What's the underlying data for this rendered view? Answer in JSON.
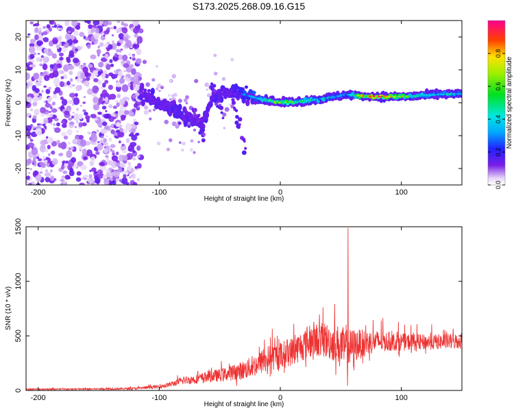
{
  "title": "S173.2025.268.09.16.G15",
  "colors": {
    "snr_line": "#ee3333",
    "axis": "#000000"
  },
  "chart_data": [
    {
      "type": "heatmap",
      "name": "spectrogram",
      "xlabel": "Height of straight line (km)",
      "ylabel": "Frequency (Hz)",
      "xlim": [
        -210,
        150
      ],
      "ylim": [
        -25,
        25
      ],
      "xticks": [
        -200,
        -100,
        0,
        100
      ],
      "yticks": [
        -20,
        -10,
        0,
        10,
        20
      ],
      "colorbar": {
        "label": "Normalized spectral amplitude",
        "range": [
          0,
          1
        ],
        "ticks": [
          "0.0",
          "0.2",
          "0.4",
          "0.6",
          "0.8"
        ],
        "tick_values": [
          0.0,
          0.2,
          0.4,
          0.6,
          0.8
        ]
      },
      "ridge": {
        "description": "dominant frequency track",
        "x": [
          -115,
          -105,
          -95,
          -85,
          -75,
          -65,
          -55,
          -45,
          -35,
          -25,
          -15,
          0,
          20,
          40,
          55,
          70,
          90,
          110,
          130,
          150
        ],
        "y": [
          3,
          1,
          -1,
          -3,
          -5,
          -6,
          2,
          3,
          3,
          2,
          1,
          0,
          0.5,
          1.5,
          2.5,
          2,
          1.8,
          2,
          2.5,
          2.7
        ],
        "amplitude": [
          0.2,
          0.15,
          0.2,
          0.2,
          0.2,
          0.15,
          0.25,
          0.2,
          0.25,
          0.4,
          0.5,
          0.8,
          0.5,
          0.45,
          0.35,
          0.9,
          0.95,
          0.55,
          0.45,
          0.45
        ]
      },
      "noise_region": {
        "x_range": [
          -210,
          -115
        ],
        "amplitude": 0.05
      }
    },
    {
      "type": "line",
      "name": "snr",
      "xlabel": "Height of straight line (km)",
      "ylabel": "SNR (10 * v/v)",
      "xlim": [
        -210,
        150
      ],
      "ylim": [
        0,
        1500
      ],
      "xticks": [
        -200,
        -100,
        0,
        100
      ],
      "yticks": [
        0,
        500,
        1000,
        1500
      ],
      "envelope": {
        "x": [
          -210,
          -180,
          -140,
          -120,
          -100,
          -90,
          -80,
          -70,
          -60,
          -50,
          -40,
          -30,
          -20,
          -10,
          0,
          10,
          20,
          30,
          40,
          50,
          55,
          60,
          70,
          80,
          100,
          120,
          150
        ],
        "baseline": [
          10,
          10,
          12,
          15,
          30,
          50,
          80,
          90,
          110,
          120,
          140,
          160,
          200,
          260,
          280,
          320,
          380,
          420,
          400,
          360,
          300,
          360,
          400,
          420,
          420,
          420,
          430
        ],
        "spread": [
          15,
          15,
          20,
          25,
          40,
          60,
          90,
          100,
          130,
          150,
          180,
          220,
          260,
          300,
          320,
          330,
          360,
          380,
          420,
          450,
          500,
          400,
          300,
          250,
          200,
          180,
          180
        ]
      },
      "peak": {
        "x": 56,
        "y": 1490
      }
    }
  ]
}
